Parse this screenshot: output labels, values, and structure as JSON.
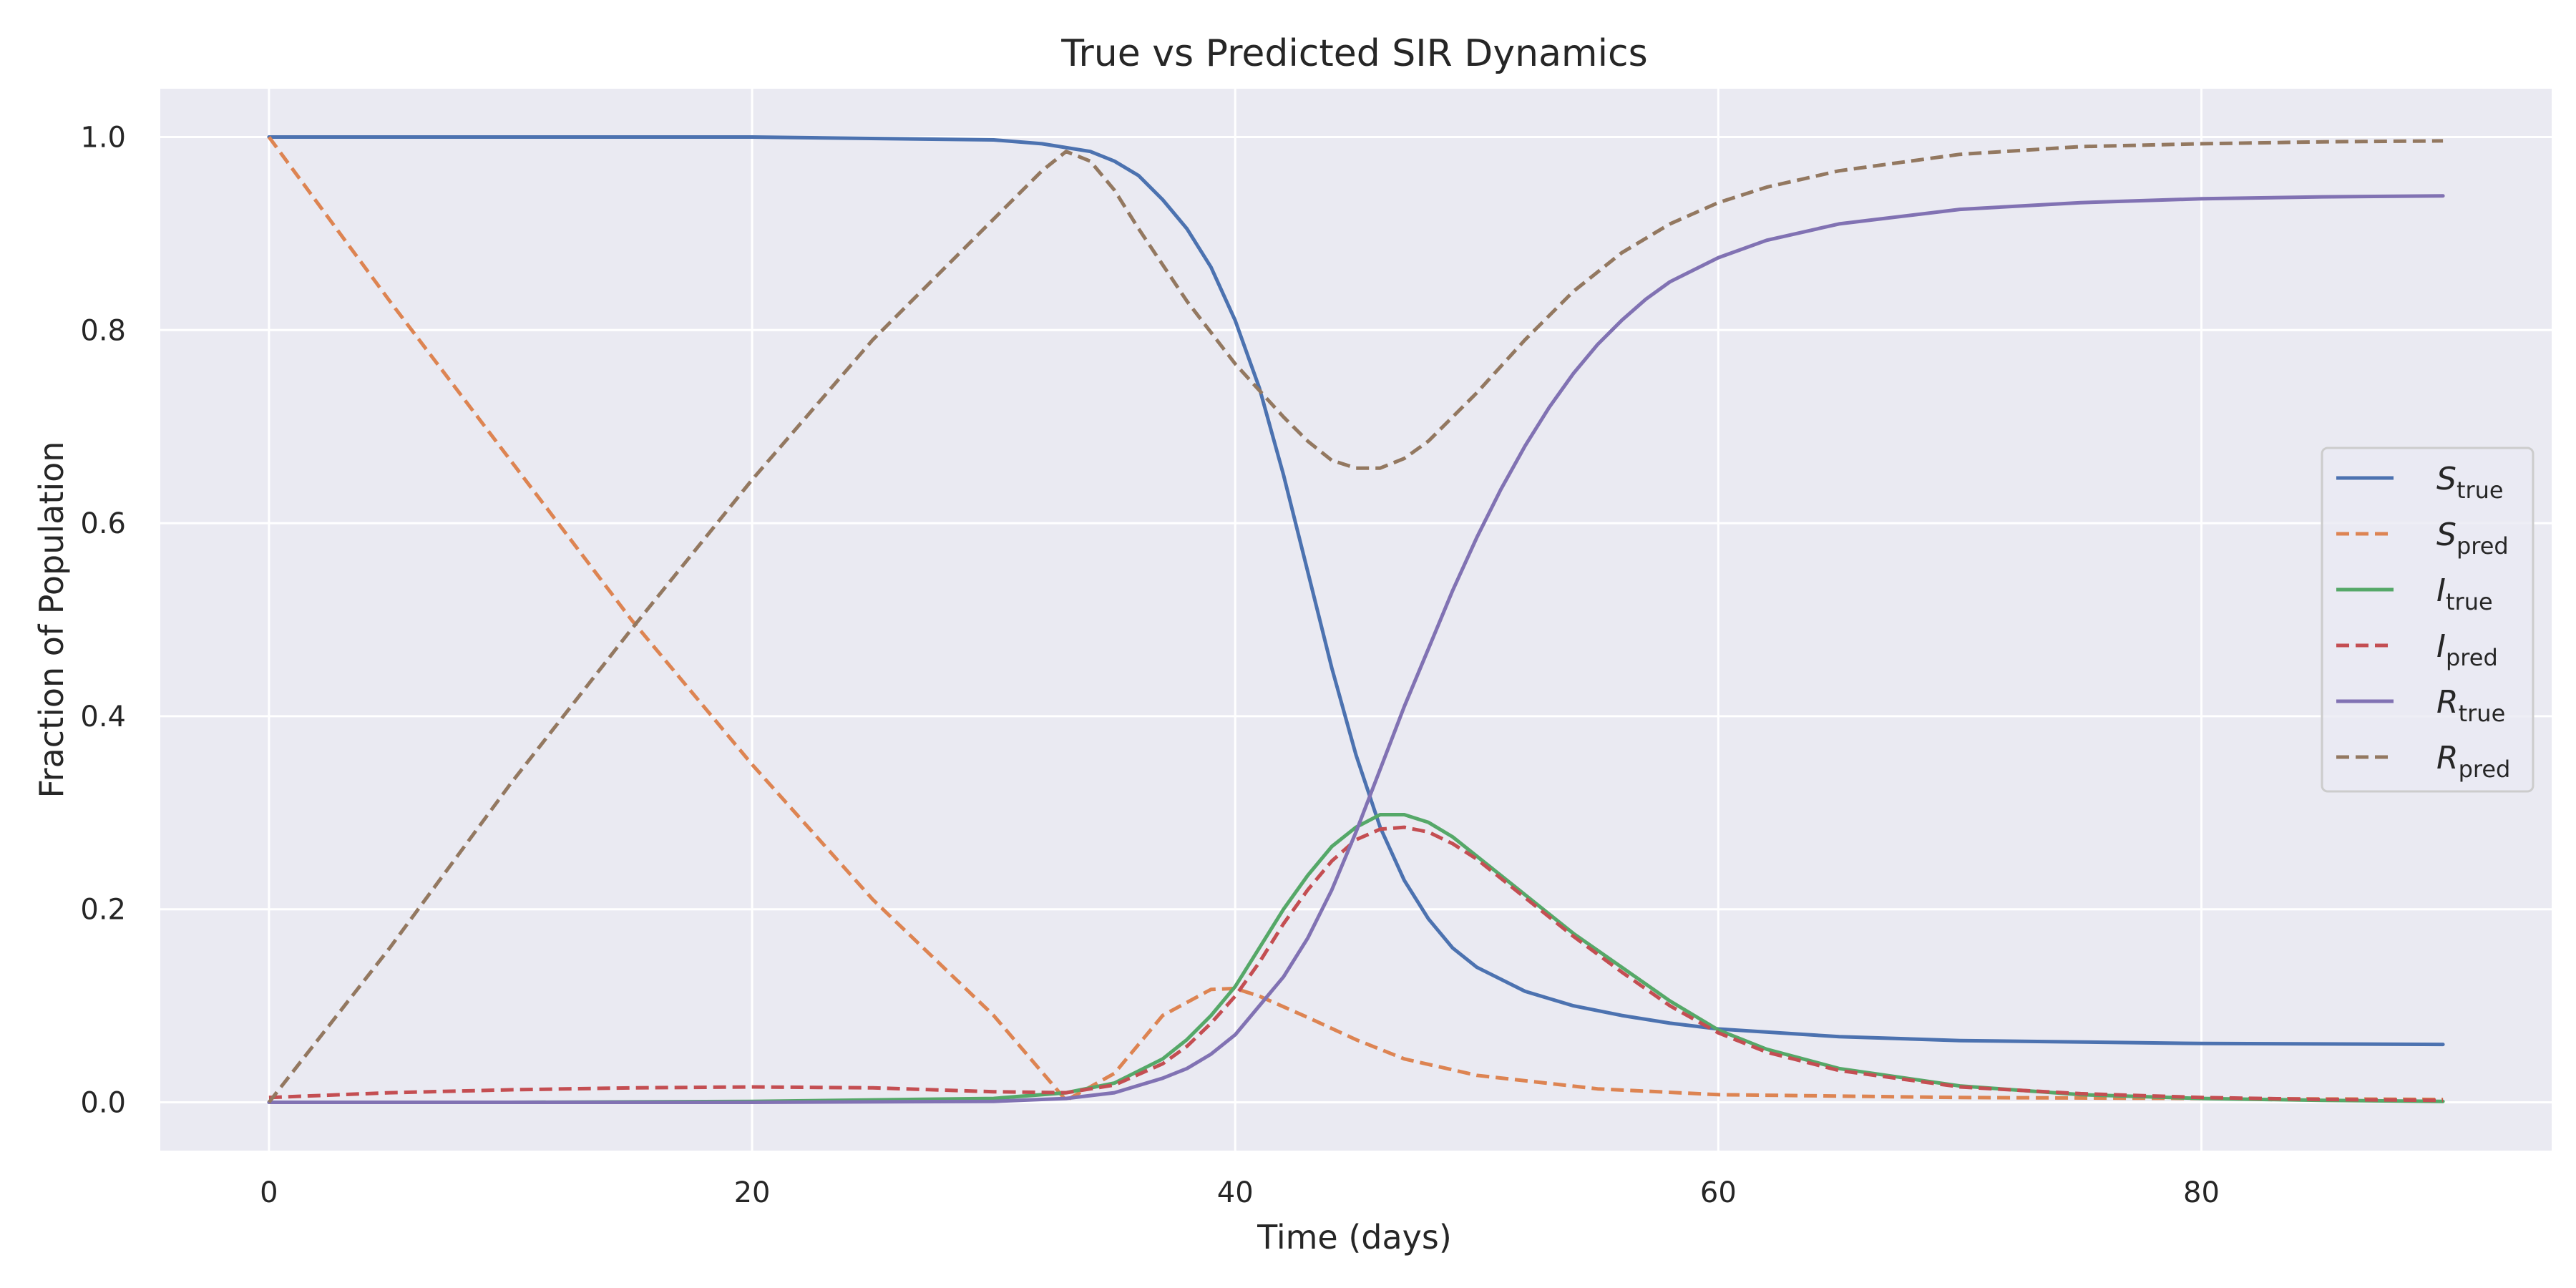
{
  "chart_data": {
    "type": "line",
    "title": "True vs Predicted SIR Dynamics",
    "xlabel": "Time (days)",
    "ylabel": "Fraction of Population",
    "xlim": [
      -4.5,
      94.5
    ],
    "ylim": [
      -0.05,
      1.05
    ],
    "xticks": [
      0,
      20,
      40,
      60,
      80
    ],
    "yticks": [
      0.0,
      0.2,
      0.4,
      0.6,
      0.8,
      1.0
    ],
    "xtick_labels": [
      "0",
      "20",
      "40",
      "60",
      "80"
    ],
    "ytick_labels": [
      "0.0",
      "0.2",
      "0.4",
      "0.6",
      "0.8",
      "1.0"
    ],
    "grid": true,
    "legend_position": "center-right",
    "series": [
      {
        "name": "S_true",
        "label_main": "S",
        "label_sub": "true",
        "color": "#4c72b0",
        "dash": "solid",
        "x": [
          0,
          10,
          20,
          30,
          32,
          34,
          35,
          36,
          37,
          38,
          39,
          40,
          41,
          42,
          43,
          44,
          45,
          46,
          47,
          48,
          49,
          50,
          52,
          54,
          56,
          58,
          60,
          65,
          70,
          80,
          90
        ],
        "y": [
          1.0,
          1.0,
          1.0,
          0.997,
          0.993,
          0.985,
          0.975,
          0.96,
          0.935,
          0.905,
          0.865,
          0.81,
          0.74,
          0.65,
          0.55,
          0.45,
          0.36,
          0.285,
          0.23,
          0.19,
          0.16,
          0.14,
          0.115,
          0.1,
          0.09,
          0.082,
          0.076,
          0.068,
          0.064,
          0.061,
          0.06
        ]
      },
      {
        "name": "S_pred",
        "label_main": "S",
        "label_sub": "pred",
        "color": "#dd8452",
        "dash": "dashed",
        "x": [
          0,
          5,
          10,
          15,
          20,
          25,
          30,
          33,
          35,
          37,
          39,
          40,
          41,
          43,
          45,
          47,
          50,
          55,
          60,
          70,
          80,
          90
        ],
        "y": [
          1.0,
          0.83,
          0.665,
          0.5,
          0.35,
          0.21,
          0.09,
          0.002,
          0.03,
          0.09,
          0.117,
          0.118,
          0.11,
          0.088,
          0.065,
          0.045,
          0.028,
          0.014,
          0.008,
          0.005,
          0.004,
          0.003
        ]
      },
      {
        "name": "I_true",
        "label_main": "I",
        "label_sub": "true",
        "color": "#55a868",
        "dash": "solid",
        "x": [
          0,
          10,
          20,
          30,
          33,
          35,
          37,
          38,
          39,
          40,
          41,
          42,
          43,
          44,
          45,
          46,
          47,
          48,
          49,
          50,
          52,
          54,
          56,
          58,
          60,
          62,
          65,
          70,
          75,
          80,
          85,
          90
        ],
        "y": [
          0.0,
          0.0,
          0.001,
          0.004,
          0.01,
          0.02,
          0.045,
          0.065,
          0.09,
          0.12,
          0.16,
          0.2,
          0.235,
          0.265,
          0.285,
          0.298,
          0.298,
          0.29,
          0.275,
          0.255,
          0.215,
          0.175,
          0.14,
          0.105,
          0.075,
          0.055,
          0.035,
          0.017,
          0.008,
          0.004,
          0.002,
          0.001
        ]
      },
      {
        "name": "I_pred",
        "label_main": "I",
        "label_sub": "pred",
        "color": "#c44e52",
        "dash": "dashed",
        "x": [
          0,
          5,
          10,
          15,
          20,
          25,
          30,
          33,
          35,
          37,
          38,
          39,
          40,
          41,
          42,
          43,
          44,
          45,
          46,
          47,
          48,
          49,
          50,
          52,
          54,
          56,
          58,
          60,
          62,
          65,
          70,
          75,
          80,
          85,
          90
        ],
        "y": [
          0.005,
          0.01,
          0.013,
          0.015,
          0.016,
          0.015,
          0.011,
          0.01,
          0.018,
          0.04,
          0.058,
          0.082,
          0.11,
          0.145,
          0.185,
          0.22,
          0.25,
          0.272,
          0.283,
          0.285,
          0.28,
          0.268,
          0.252,
          0.212,
          0.172,
          0.135,
          0.1,
          0.072,
          0.052,
          0.033,
          0.016,
          0.009,
          0.005,
          0.003,
          0.002
        ]
      },
      {
        "name": "R_true",
        "label_main": "R",
        "label_sub": "true",
        "color": "#8172b3",
        "dash": "solid",
        "x": [
          0,
          10,
          20,
          30,
          33,
          35,
          37,
          38,
          39,
          40,
          41,
          42,
          43,
          44,
          45,
          46,
          47,
          48,
          49,
          50,
          51,
          52,
          53,
          54,
          55,
          56,
          57,
          58,
          60,
          62,
          65,
          70,
          75,
          80,
          85,
          90
        ],
        "y": [
          0.0,
          0.0,
          0.0,
          0.001,
          0.004,
          0.01,
          0.025,
          0.035,
          0.05,
          0.07,
          0.1,
          0.13,
          0.17,
          0.22,
          0.28,
          0.345,
          0.41,
          0.47,
          0.53,
          0.585,
          0.635,
          0.68,
          0.72,
          0.755,
          0.785,
          0.81,
          0.832,
          0.85,
          0.875,
          0.893,
          0.91,
          0.925,
          0.932,
          0.936,
          0.938,
          0.939
        ]
      },
      {
        "name": "R_pred",
        "label_main": "R",
        "label_sub": "pred",
        "color": "#937860",
        "dash": "dashed",
        "x": [
          0,
          5,
          10,
          15,
          20,
          25,
          30,
          32,
          33,
          34,
          35,
          36,
          38,
          40,
          42,
          43,
          44,
          45,
          46,
          47,
          48,
          50,
          52,
          54,
          56,
          58,
          60,
          62,
          65,
          70,
          75,
          80,
          85,
          90
        ],
        "y": [
          0.0,
          0.16,
          0.33,
          0.49,
          0.645,
          0.79,
          0.915,
          0.965,
          0.985,
          0.975,
          0.945,
          0.905,
          0.83,
          0.765,
          0.71,
          0.685,
          0.665,
          0.657,
          0.657,
          0.667,
          0.685,
          0.735,
          0.79,
          0.84,
          0.88,
          0.91,
          0.932,
          0.948,
          0.965,
          0.982,
          0.99,
          0.993,
          0.995,
          0.996
        ]
      }
    ]
  }
}
